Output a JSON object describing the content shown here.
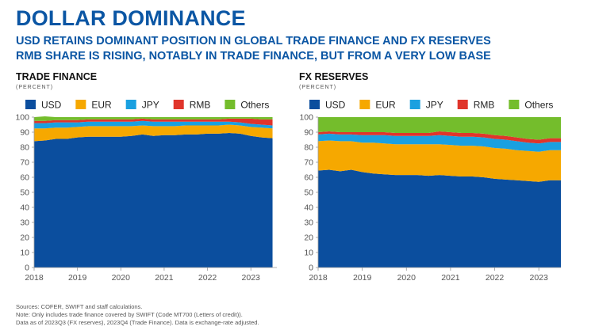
{
  "header": {
    "title": "DOLLAR DOMINANCE",
    "subtitle_1": "USD RETAINS DOMINANT POSITION IN GLOBAL TRADE FINANCE AND FX RESERVES",
    "subtitle_2": "RMB SHARE IS RISING, NOTABLY IN TRADE FINANCE, BUT FROM A VERY LOW BASE"
  },
  "colors": {
    "USD": "#0b4e9e",
    "EUR": "#f6a800",
    "JPY": "#1aa0e0",
    "RMB": "#e0352b",
    "Others": "#74bd2c"
  },
  "footnotes": [
    "Sources: COFER, SWIFT and staff calculations.",
    "Note: Only includes trade finance covered by SWIFT (Code MT700 (Letters of credit)).",
    "Data as of 2023Q3 (FX reserves), 2023Q4 (Trade Finance). Data is exchange-rate adjusted."
  ],
  "chart_data": [
    {
      "type": "area",
      "stacked": true,
      "title": "TRADE FINANCE",
      "unit": "(PERCENT)",
      "legend": [
        "USD",
        "EUR",
        "JPY",
        "RMB",
        "Others"
      ],
      "legend_position": "top",
      "xlim": [
        2018,
        2023.6
      ],
      "ylim": [
        0,
        100
      ],
      "xticks": [
        2018,
        2019,
        2020,
        2021,
        2022,
        2023
      ],
      "yticks": [
        0,
        10,
        20,
        30,
        40,
        50,
        60,
        70,
        80,
        90,
        100
      ],
      "grid": false,
      "x": [
        2018.0,
        2018.25,
        2018.5,
        2018.75,
        2019.0,
        2019.25,
        2019.5,
        2019.75,
        2020.0,
        2020.25,
        2020.5,
        2020.75,
        2021.0,
        2021.25,
        2021.5,
        2021.75,
        2022.0,
        2022.25,
        2022.5,
        2022.75,
        2023.0,
        2023.25,
        2023.5
      ],
      "series": [
        {
          "name": "USD",
          "values": [
            84,
            84.5,
            85.5,
            85.5,
            86.5,
            87,
            87,
            87,
            87,
            87.5,
            88.5,
            87.5,
            88,
            88,
            88.5,
            88.5,
            89,
            89,
            89.5,
            89,
            87.5,
            86.5,
            86
          ]
        },
        {
          "name": "EUR",
          "values": [
            8.5,
            8,
            7.5,
            7.5,
            7,
            7,
            7,
            7,
            7,
            6.5,
            6,
            6.5,
            6,
            6,
            6,
            6,
            5.5,
            5.5,
            5.5,
            5.5,
            6,
            6.5,
            6.5
          ]
        },
        {
          "name": "JPY",
          "values": [
            3.5,
            3.5,
            3.5,
            3.5,
            3,
            3,
            3,
            3,
            3,
            3,
            3,
            3,
            3,
            3,
            2.5,
            2.5,
            2.5,
            2.5,
            2,
            2,
            2,
            2,
            2
          ]
        },
        {
          "name": "RMB",
          "values": [
            1.5,
            1.5,
            1.5,
            1.5,
            1.5,
            1.5,
            1.5,
            1.5,
            1.5,
            1.5,
            1.5,
            1.5,
            1.5,
            1.5,
            1.5,
            1.5,
            1.5,
            1.5,
            2,
            2.5,
            3.5,
            3.5,
            4
          ]
        },
        {
          "name": "Others",
          "values": [
            2.5,
            3,
            2,
            2,
            2,
            1.5,
            1.5,
            1.5,
            1.5,
            1.5,
            1,
            1.5,
            1.5,
            1.5,
            1.5,
            1.5,
            1.5,
            1.5,
            1,
            1,
            1,
            1.5,
            1.5
          ]
        }
      ]
    },
    {
      "type": "area",
      "stacked": true,
      "title": "FX RESERVES",
      "unit": "(PERCENT)",
      "legend": [
        "USD",
        "EUR",
        "JPY",
        "RMB",
        "Others"
      ],
      "legend_position": "top",
      "xlim": [
        2018,
        2023.5
      ],
      "ylim": [
        0,
        100
      ],
      "xticks": [
        2018,
        2019,
        2020,
        2021,
        2022,
        2023
      ],
      "yticks": [
        0,
        10,
        20,
        30,
        40,
        50,
        60,
        70,
        80,
        90,
        100
      ],
      "grid": false,
      "x": [
        2018.0,
        2018.25,
        2018.5,
        2018.75,
        2019.0,
        2019.25,
        2019.5,
        2019.75,
        2020.0,
        2020.25,
        2020.5,
        2020.75,
        2021.0,
        2021.25,
        2021.5,
        2021.75,
        2022.0,
        2022.25,
        2022.5,
        2022.75,
        2023.0,
        2023.25,
        2023.5
      ],
      "series": [
        {
          "name": "USD",
          "values": [
            64.5,
            65,
            64,
            65,
            63.5,
            62.5,
            62,
            61.5,
            61.5,
            61.5,
            61,
            61.5,
            61,
            60.5,
            60.5,
            60,
            59,
            58.5,
            58,
            57.5,
            57,
            58,
            58
          ]
        },
        {
          "name": "EUR",
          "values": [
            19.5,
            19.5,
            20,
            19,
            19.5,
            20.5,
            20.5,
            20.5,
            20.5,
            20.5,
            21,
            20.5,
            20.5,
            20.5,
            20.5,
            20.5,
            20.5,
            20.5,
            20,
            20,
            20,
            20,
            20
          ]
        },
        {
          "name": "JPY",
          "values": [
            4.5,
            4.5,
            4.5,
            4.5,
            5,
            5,
            5.5,
            5.5,
            5.5,
            5.5,
            5.5,
            6,
            6,
            6,
            6,
            6,
            6,
            6,
            6,
            5.5,
            5.5,
            5.5,
            5.5
          ]
        },
        {
          "name": "RMB",
          "values": [
            1.5,
            1.5,
            1.5,
            1.5,
            2,
            2,
            2,
            2,
            2,
            2,
            2,
            2.5,
            2.5,
            2.5,
            2.5,
            2.5,
            2.5,
            2.5,
            2.5,
            2.5,
            2.5,
            2.5,
            2.5
          ]
        },
        {
          "name": "Others",
          "values": [
            10,
            9.5,
            10,
            10,
            10,
            10,
            10,
            10.5,
            10.5,
            10.5,
            10.5,
            9.5,
            10,
            10.5,
            10.5,
            11,
            12,
            12.5,
            13.5,
            14.5,
            15,
            14,
            14
          ]
        }
      ]
    }
  ]
}
